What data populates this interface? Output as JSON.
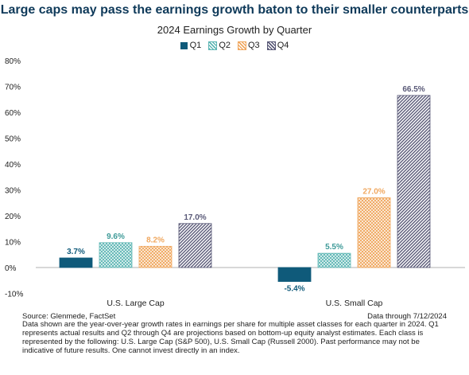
{
  "chart_data": {
    "type": "bar",
    "title": "Large caps may pass the earnings growth baton to their smaller counterparts",
    "subtitle": "2024 Earnings Growth by Quarter",
    "categories": [
      "U.S. Large Cap",
      "U.S. Small Cap"
    ],
    "series": [
      {
        "name": "Q1",
        "values": [
          3.7,
          -5.4
        ],
        "labels": [
          "3.7%",
          "-5.4%"
        ],
        "color": "#0f5a7a",
        "pattern": "solid"
      },
      {
        "name": "Q2",
        "values": [
          9.6,
          5.5
        ],
        "labels": [
          "9.6%",
          "5.5%"
        ],
        "color": "#5fb7b5",
        "pattern": "crosshatch"
      },
      {
        "name": "Q3",
        "values": [
          8.2,
          27.0
        ],
        "labels": [
          "8.2%",
          "27.0%"
        ],
        "color": "#f0a860",
        "pattern": "crosshatch"
      },
      {
        "name": "Q4",
        "values": [
          17.0,
          66.5
        ],
        "labels": [
          "17.0%",
          "66.5%"
        ],
        "color": "#5a5a78",
        "pattern": "diagonal"
      }
    ],
    "ylim": [
      -10,
      80
    ],
    "yticks": [
      -10,
      0,
      10,
      20,
      30,
      40,
      50,
      60,
      70,
      80
    ],
    "ytick_labels": [
      "-10%",
      "0%",
      "10%",
      "20%",
      "30%",
      "40%",
      "50%",
      "60%",
      "70%",
      "80%"
    ],
    "grid": false,
    "legend": "top-center"
  },
  "footer": {
    "source": "Source: Glenmede, FactSet",
    "date": "Data through 7/12/2024",
    "note": "Data shown are the year-over-year growth rates in earnings per share for multiple asset classes for each quarter in 2024. Q1 represents actual results and Q2 through Q4 are projections based on bottom-up equity analyst estimates. Each class is represented by the following: U.S. Large Cap (S&P 500), U.S. Small Cap (Russell 2000). Past performance may not be indicative of future results. One cannot invest directly in an index."
  }
}
